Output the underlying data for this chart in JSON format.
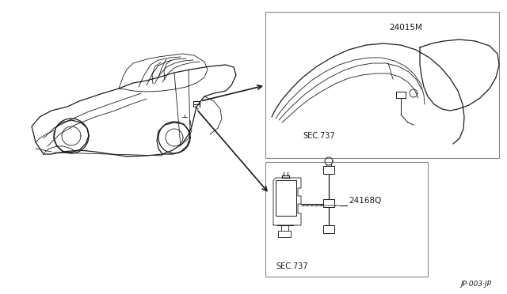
{
  "bg_color": "#ffffff",
  "line_color": "#1a1a1a",
  "page_ref": "JP·003·JP",
  "part1_label": "24015M",
  "part1_sec": "SEC.737",
  "part2_label": "24168Q",
  "part2_sec": "SEC.737",
  "figsize": [
    6.4,
    3.72
  ],
  "dpi": 100
}
